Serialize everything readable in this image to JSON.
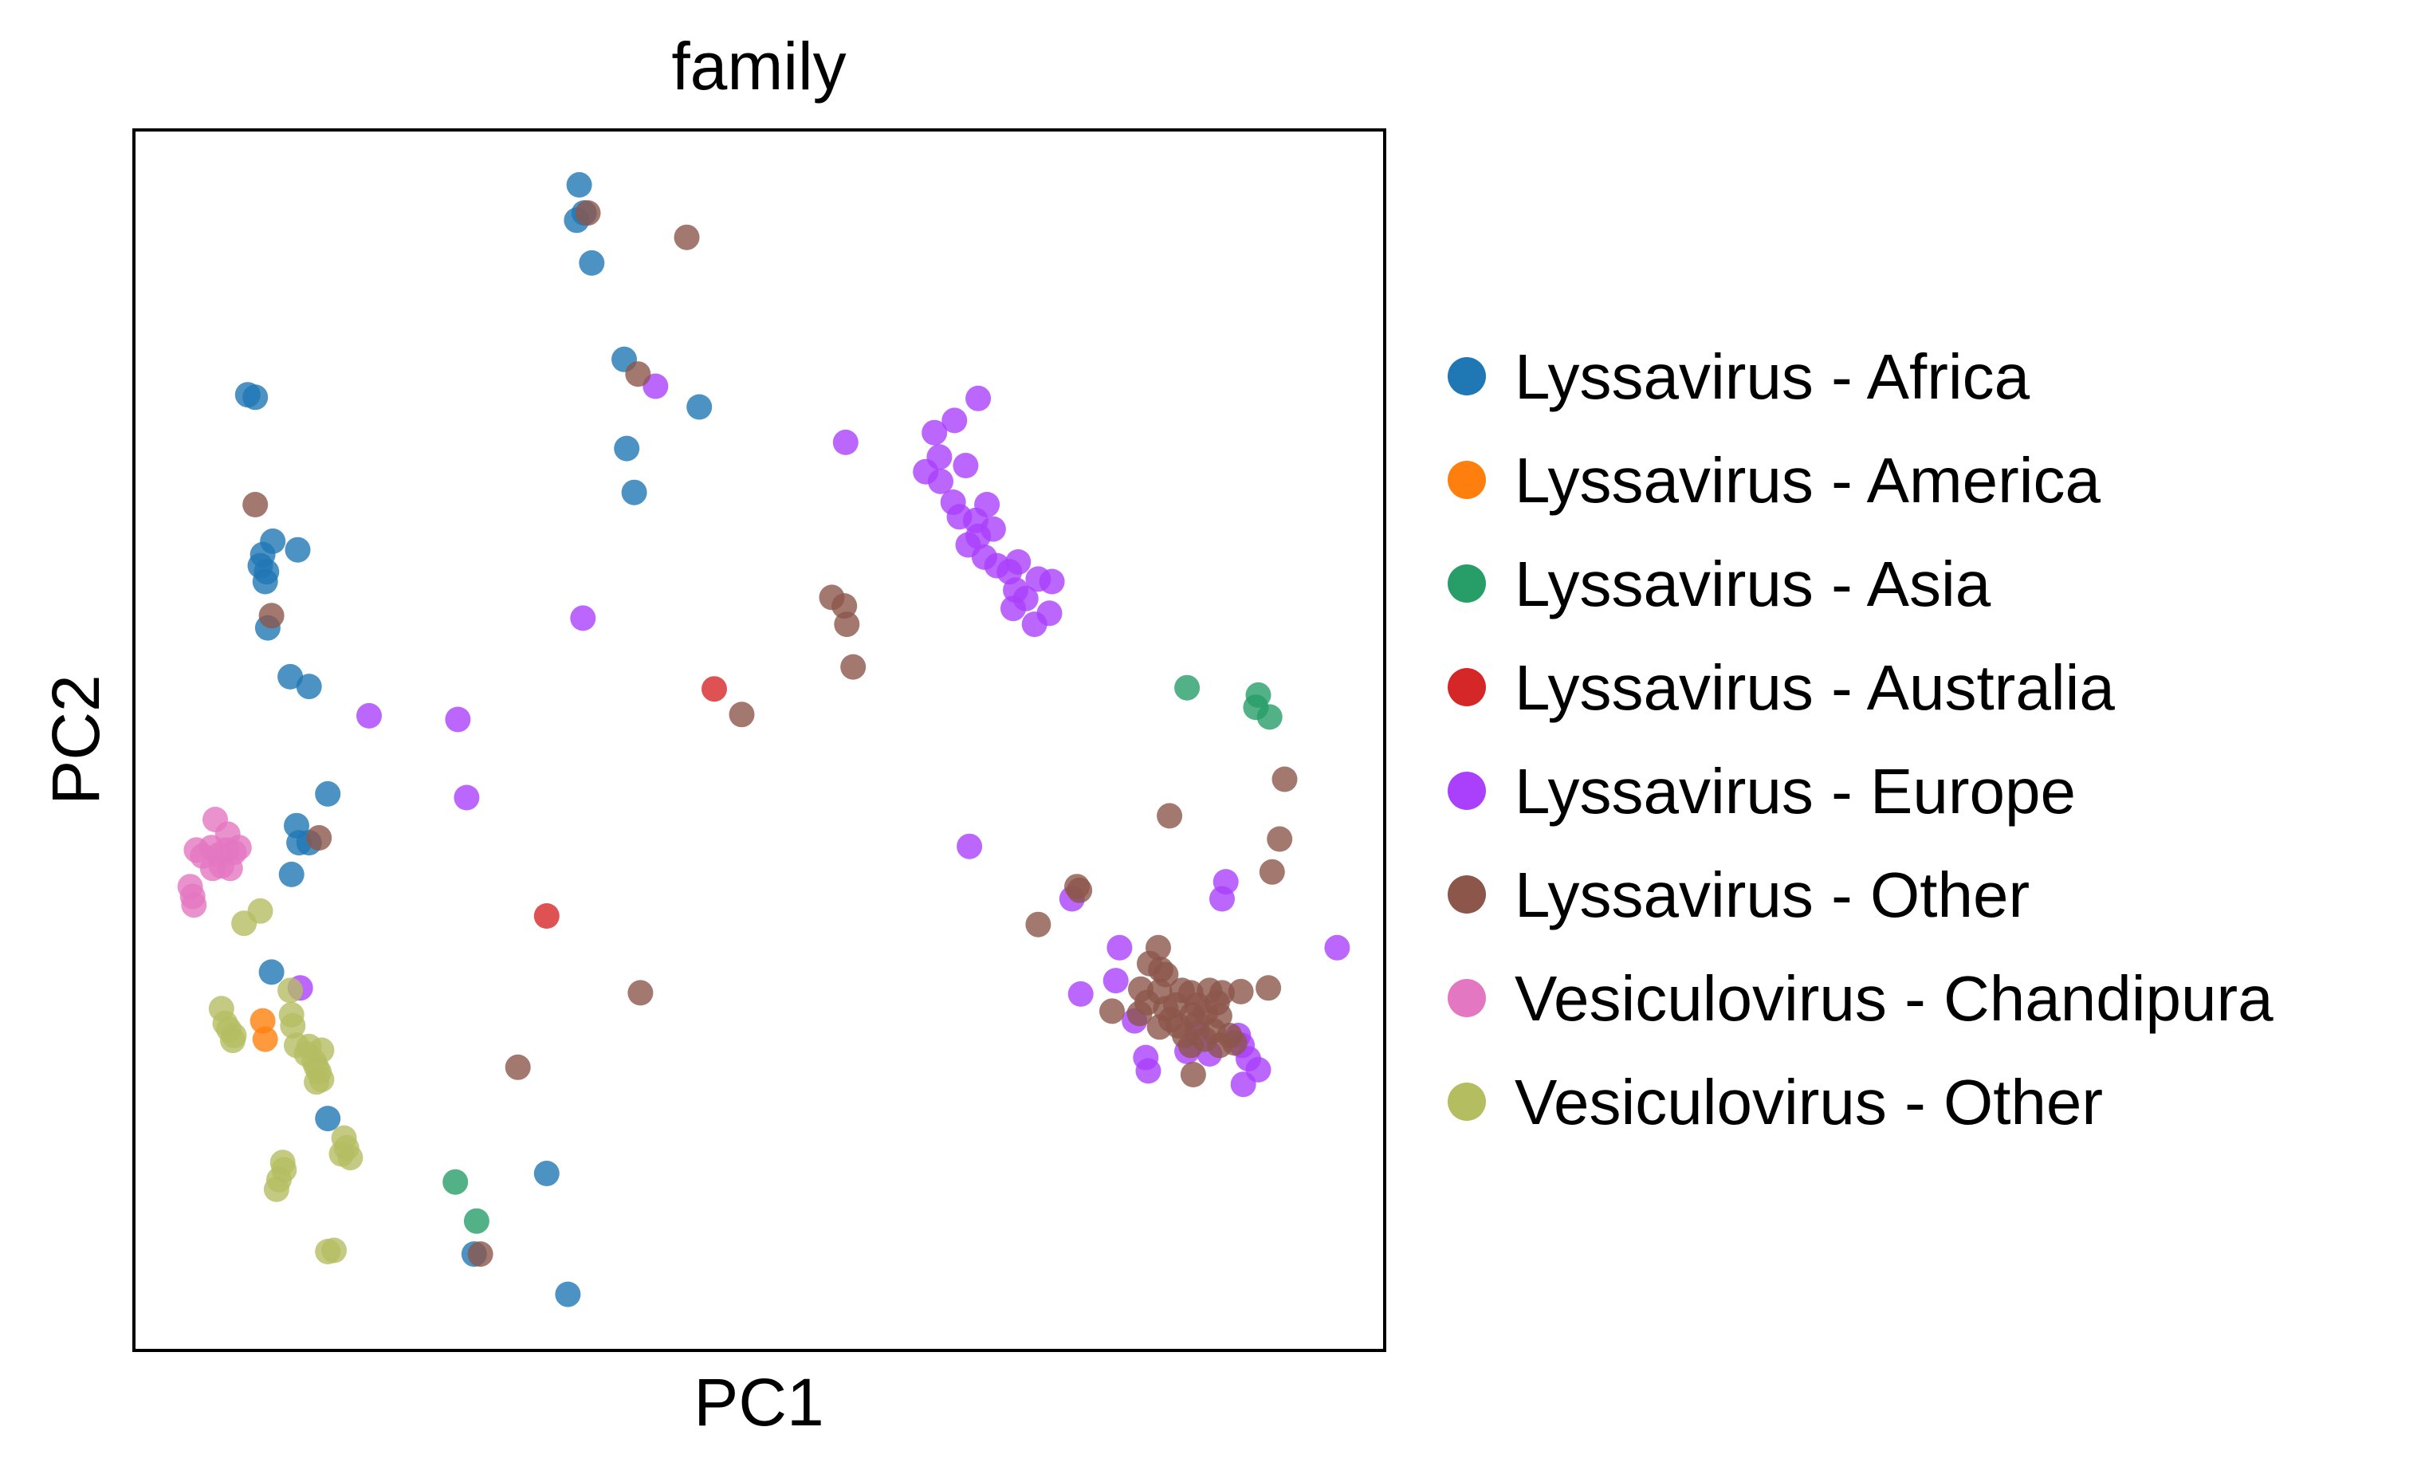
{
  "chart_data": {
    "type": "scatter",
    "title": "family",
    "xlabel": "PC1",
    "ylabel": "PC2",
    "xlim": [
      0,
      100
    ],
    "ylim": [
      0,
      100
    ],
    "xticks_shown": false,
    "yticks_shown": false,
    "grid": false,
    "legend_position": "right",
    "marker_opacity": 0.8,
    "series": [
      {
        "name": "Lyssavirus - Africa",
        "color": "#1f77b4",
        "points": [
          [
            35.6,
            95.5
          ],
          [
            36.0,
            93.2
          ],
          [
            35.4,
            92.6
          ],
          [
            36.6,
            89.1
          ],
          [
            9.1,
            78.3
          ],
          [
            9.7,
            78.1
          ],
          [
            39.2,
            81.2
          ],
          [
            45.2,
            77.3
          ],
          [
            39.4,
            73.9
          ],
          [
            40.0,
            70.3
          ],
          [
            11.1,
            66.3
          ],
          [
            13.1,
            65.6
          ],
          [
            10.3,
            65.2
          ],
          [
            10.1,
            64.3
          ],
          [
            10.6,
            63.8
          ],
          [
            10.5,
            63.0
          ],
          [
            10.7,
            59.2
          ],
          [
            12.5,
            55.2
          ],
          [
            14.0,
            54.4
          ],
          [
            15.5,
            45.6
          ],
          [
            13.0,
            43.0
          ],
          [
            13.2,
            41.6
          ],
          [
            14.0,
            41.6
          ],
          [
            12.6,
            39.0
          ],
          [
            11.0,
            31.0
          ],
          [
            15.5,
            19.0
          ],
          [
            33.0,
            14.5
          ],
          [
            27.2,
            7.9
          ],
          [
            34.7,
            4.6
          ]
        ]
      },
      {
        "name": "Lyssavirus - America",
        "color": "#ff7f0e",
        "points": [
          [
            10.3,
            27.0
          ],
          [
            10.5,
            25.5
          ]
        ]
      },
      {
        "name": "Lyssavirus - Asia",
        "color": "#279e68",
        "points": [
          [
            84.2,
            54.3
          ],
          [
            89.9,
            53.7
          ],
          [
            89.7,
            52.7
          ],
          [
            90.8,
            51.9
          ],
          [
            25.7,
            13.8
          ],
          [
            27.4,
            10.6
          ]
        ]
      },
      {
        "name": "Lyssavirus - Australia",
        "color": "#d62728",
        "points": [
          [
            46.4,
            54.2
          ],
          [
            33.0,
            35.6
          ]
        ]
      },
      {
        "name": "Lyssavirus - Europe",
        "color": "#aa40fc",
        "points": [
          [
            41.7,
            79.0
          ],
          [
            67.5,
            78.0
          ],
          [
            65.6,
            76.2
          ],
          [
            64.0,
            75.2
          ],
          [
            56.9,
            74.4
          ],
          [
            64.4,
            73.2
          ],
          [
            66.5,
            72.5
          ],
          [
            63.3,
            72.0
          ],
          [
            64.5,
            71.2
          ],
          [
            65.5,
            69.5
          ],
          [
            68.2,
            69.3
          ],
          [
            66.0,
            68.3
          ],
          [
            67.3,
            68.0
          ],
          [
            68.7,
            67.3
          ],
          [
            67.5,
            66.7
          ],
          [
            66.7,
            66.0
          ],
          [
            68.0,
            65.0
          ],
          [
            69.0,
            64.3
          ],
          [
            70.7,
            64.6
          ],
          [
            70.0,
            63.8
          ],
          [
            72.3,
            63.2
          ],
          [
            73.4,
            63.0
          ],
          [
            70.5,
            62.3
          ],
          [
            71.3,
            61.6
          ],
          [
            70.3,
            60.8
          ],
          [
            73.2,
            60.4
          ],
          [
            72.0,
            59.5
          ],
          [
            35.9,
            60.0
          ],
          [
            18.8,
            52.0
          ],
          [
            25.9,
            51.7
          ],
          [
            26.6,
            45.3
          ],
          [
            66.8,
            41.3
          ],
          [
            87.3,
            38.4
          ],
          [
            87.0,
            37.0
          ],
          [
            75.0,
            37.0
          ],
          [
            96.2,
            33.0
          ],
          [
            78.8,
            33.0
          ],
          [
            78.5,
            30.3
          ],
          [
            75.7,
            29.2
          ],
          [
            80.0,
            27.0
          ],
          [
            85.0,
            26.0
          ],
          [
            88.3,
            25.8
          ],
          [
            88.6,
            25.0
          ],
          [
            84.2,
            24.5
          ],
          [
            86.0,
            24.3
          ],
          [
            89.1,
            23.9
          ],
          [
            80.9,
            24.0
          ],
          [
            81.1,
            22.9
          ],
          [
            89.9,
            23.0
          ],
          [
            88.7,
            21.8
          ],
          [
            13.3,
            29.7
          ]
        ]
      },
      {
        "name": "Lyssavirus - Other",
        "color": "#8c564b",
        "points": [
          [
            36.3,
            93.2
          ],
          [
            44.2,
            91.2
          ],
          [
            40.3,
            80.0
          ],
          [
            9.7,
            69.3
          ],
          [
            11.0,
            60.2
          ],
          [
            55.8,
            61.7
          ],
          [
            56.8,
            61.0
          ],
          [
            57.0,
            59.5
          ],
          [
            57.5,
            56.0
          ],
          [
            48.6,
            52.1
          ],
          [
            82.8,
            43.8
          ],
          [
            92.0,
            46.8
          ],
          [
            91.6,
            41.9
          ],
          [
            91.0,
            39.2
          ],
          [
            14.8,
            42.0
          ],
          [
            75.4,
            38.0
          ],
          [
            75.6,
            37.7
          ],
          [
            72.3,
            34.9
          ],
          [
            81.9,
            33.0
          ],
          [
            81.2,
            31.7
          ],
          [
            82.1,
            31.2
          ],
          [
            82.5,
            30.8
          ],
          [
            80.5,
            29.6
          ],
          [
            82.0,
            29.4
          ],
          [
            83.8,
            29.5
          ],
          [
            84.5,
            29.3
          ],
          [
            86.0,
            29.5
          ],
          [
            87.0,
            29.3
          ],
          [
            88.5,
            29.4
          ],
          [
            90.7,
            29.7
          ],
          [
            81.0,
            28.5
          ],
          [
            82.5,
            28.0
          ],
          [
            83.3,
            28.3
          ],
          [
            85.0,
            28.3
          ],
          [
            86.6,
            28.5
          ],
          [
            78.2,
            27.8
          ],
          [
            80.4,
            27.6
          ],
          [
            82.9,
            27.1
          ],
          [
            84.6,
            27.5
          ],
          [
            85.7,
            27.7
          ],
          [
            86.8,
            27.4
          ],
          [
            82.0,
            26.5
          ],
          [
            83.5,
            26.6
          ],
          [
            85.0,
            26.8
          ],
          [
            86.3,
            26.2
          ],
          [
            84.0,
            25.8
          ],
          [
            85.6,
            25.5
          ],
          [
            87.6,
            25.8
          ],
          [
            84.5,
            25.0
          ],
          [
            86.8,
            25.0
          ],
          [
            88.0,
            25.2
          ],
          [
            84.7,
            22.6
          ],
          [
            40.5,
            29.3
          ],
          [
            30.7,
            23.2
          ],
          [
            27.7,
            7.9
          ]
        ]
      },
      {
        "name": "Vesiculovirus - Chandipura",
        "color": "#e377c2",
        "points": [
          [
            6.5,
            43.5
          ],
          [
            6.2,
            41.2
          ],
          [
            7.5,
            42.3
          ],
          [
            5.0,
            41.0
          ],
          [
            5.5,
            40.5
          ],
          [
            6.8,
            40.6
          ],
          [
            7.4,
            41.0
          ],
          [
            8.0,
            40.8
          ],
          [
            8.4,
            41.2
          ],
          [
            7.0,
            39.7
          ],
          [
            6.3,
            39.5
          ],
          [
            7.7,
            39.5
          ],
          [
            4.5,
            38.0
          ],
          [
            4.7,
            37.2
          ],
          [
            4.8,
            36.5
          ]
        ]
      },
      {
        "name": "Vesiculovirus - Other",
        "color": "#b5bd61",
        "points": [
          [
            10.1,
            36.0
          ],
          [
            8.8,
            35.0
          ],
          [
            12.5,
            29.5
          ],
          [
            7.0,
            28.0
          ],
          [
            12.6,
            27.5
          ],
          [
            7.3,
            26.8
          ],
          [
            7.6,
            26.3
          ],
          [
            12.7,
            26.6
          ],
          [
            8.0,
            25.8
          ],
          [
            7.9,
            25.4
          ],
          [
            13.0,
            25.0
          ],
          [
            14.0,
            24.9
          ],
          [
            15.0,
            24.6
          ],
          [
            13.8,
            24.3
          ],
          [
            14.4,
            23.7
          ],
          [
            14.6,
            23.2
          ],
          [
            14.8,
            22.8
          ],
          [
            15.0,
            22.2
          ],
          [
            14.6,
            22.0
          ],
          [
            16.8,
            17.4
          ],
          [
            17.0,
            16.6
          ],
          [
            16.6,
            16.1
          ],
          [
            17.3,
            15.8
          ],
          [
            11.9,
            15.4
          ],
          [
            12.0,
            14.8
          ],
          [
            11.6,
            14.0
          ],
          [
            11.4,
            13.2
          ],
          [
            15.5,
            8.1
          ],
          [
            16.0,
            8.2
          ]
        ]
      }
    ]
  }
}
